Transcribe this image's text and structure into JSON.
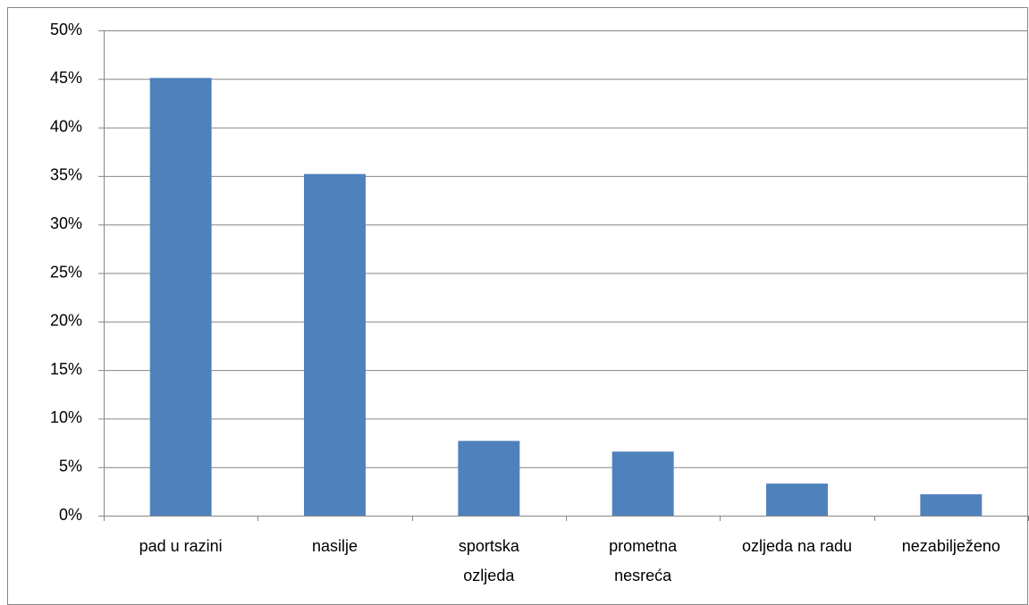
{
  "chart_data": {
    "type": "bar",
    "categories": [
      "pad u razini",
      "nasilje",
      "sportska\nozljeda",
      "prometna\nnesreća",
      "ozljeda na radu",
      "nezabilježeno"
    ],
    "values": [
      45.1,
      35.2,
      7.7,
      6.6,
      3.3,
      2.2
    ],
    "color": "#4f81bd",
    "ylim": [
      0,
      50
    ],
    "yticks": [
      {
        "value": 0,
        "label": "0%"
      },
      {
        "value": 5,
        "label": "5%"
      },
      {
        "value": 10,
        "label": "10%"
      },
      {
        "value": 15,
        "label": "15%"
      },
      {
        "value": 20,
        "label": "20%"
      },
      {
        "value": 25,
        "label": "25%"
      },
      {
        "value": 30,
        "label": "30%"
      },
      {
        "value": 35,
        "label": "35%"
      },
      {
        "value": 40,
        "label": "40%"
      },
      {
        "value": 45,
        "label": "45%"
      },
      {
        "value": 50,
        "label": "50%"
      }
    ],
    "grid": true
  }
}
